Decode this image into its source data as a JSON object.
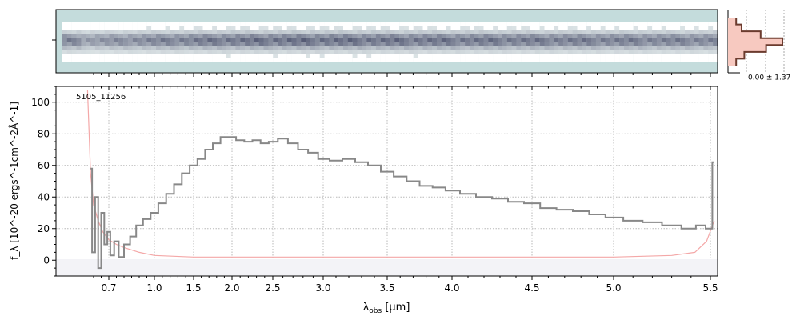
{
  "chart_data": [
    {
      "type": "heatmap",
      "panel": "2d-spectrum",
      "ytick_label": "",
      "colors": {
        "background": "#c4dcdc",
        "low": "#e8f0f0",
        "high": "#3a3f5e",
        "empty": "#ffffff"
      }
    },
    {
      "type": "line",
      "panel": "profile",
      "annotation": "0.00 ± 1.37",
      "profile_values": [
        0.15,
        0.25,
        0.6,
        1.0,
        0.7,
        0.3,
        0.15
      ],
      "colors": {
        "fill": "#f7c9c0",
        "line": "#6b3b2e"
      }
    },
    {
      "type": "line",
      "panel": "1d-spectrum",
      "annotation": "5105_11256",
      "xlabel_main": "λ",
      "xlabel_sub": "obs",
      "xlabel_unit": " [μm]",
      "ylabel": "f_λ [10^-20 ergs^-1cm^-2Å^-1]",
      "xticks": [
        0.7,
        1.0,
        1.5,
        2.0,
        2.5,
        3.0,
        3.5,
        4.0,
        4.5,
        5.0,
        5.5
      ],
      "xtick_labels": [
        "0.7",
        "1.0",
        "1.5",
        "2.0",
        "2.5",
        "3.0",
        "3.5",
        "4.0",
        "4.5",
        "5.0",
        "5.5"
      ],
      "yticks": [
        0,
        20,
        40,
        60,
        80,
        100
      ],
      "ytick_labels": [
        "0",
        "20",
        "40",
        "60",
        "80",
        "100"
      ],
      "xlim": [
        0.55,
        5.55
      ],
      "ylim": [
        -10,
        110
      ],
      "grid": true,
      "series": [
        {
          "role": "flux",
          "color": "#888888",
          "x": [
            0.58,
            0.6,
            0.62,
            0.64,
            0.66,
            0.68,
            0.7,
            0.72,
            0.75,
            0.78,
            0.82,
            0.86,
            0.9,
            0.95,
            1.0,
            1.1,
            1.2,
            1.3,
            1.4,
            1.5,
            1.6,
            1.7,
            1.8,
            1.9,
            2.0,
            2.1,
            2.2,
            2.3,
            2.4,
            2.5,
            2.6,
            2.7,
            2.8,
            2.9,
            3.0,
            3.1,
            3.2,
            3.3,
            3.4,
            3.5,
            3.6,
            3.7,
            3.8,
            3.9,
            4.0,
            4.1,
            4.2,
            4.3,
            4.4,
            4.5,
            4.6,
            4.7,
            4.8,
            4.9,
            5.0,
            5.1,
            5.2,
            5.3,
            5.4,
            5.45,
            5.5,
            5.52
          ],
          "y": [
            58,
            5,
            40,
            -5,
            30,
            10,
            18,
            3,
            12,
            2,
            10,
            15,
            22,
            26,
            30,
            36,
            42,
            48,
            55,
            60,
            64,
            70,
            74,
            78,
            78,
            76,
            75,
            76,
            74,
            75,
            77,
            74,
            70,
            68,
            64,
            63,
            64,
            62,
            60,
            56,
            53,
            50,
            47,
            46,
            44,
            42,
            40,
            39,
            37,
            36,
            33,
            32,
            31,
            29,
            27,
            25,
            24,
            22,
            20,
            22,
            20,
            62
          ]
        },
        {
          "role": "error",
          "color": "#f4a8a8",
          "x": [
            0.56,
            0.58,
            0.6,
            0.63,
            0.66,
            0.7,
            0.75,
            0.8,
            0.9,
            1.0,
            1.5,
            2.0,
            3.0,
            4.0,
            5.0,
            5.3,
            5.42,
            5.48,
            5.52
          ],
          "y": [
            108,
            55,
            35,
            25,
            18,
            13,
            10,
            8,
            5,
            3,
            2,
            2,
            2,
            2,
            2,
            3,
            5,
            12,
            25
          ]
        }
      ]
    }
  ]
}
